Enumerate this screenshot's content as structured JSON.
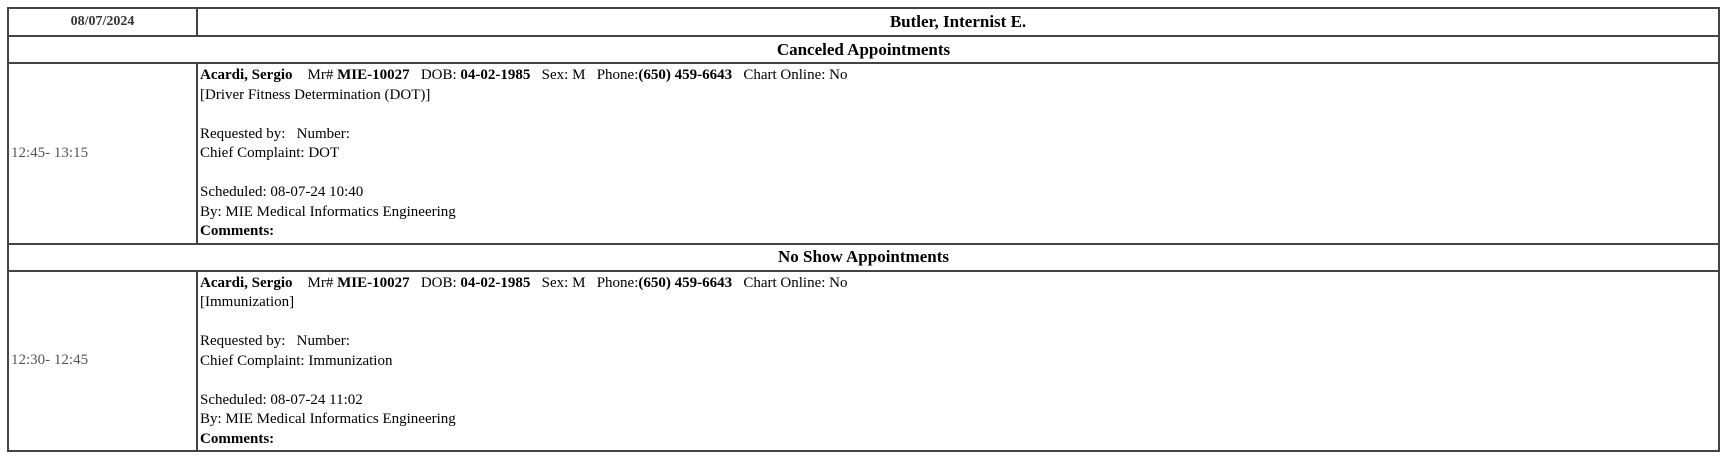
{
  "header": {
    "date": "08/07/2024",
    "provider": "Butler, Internist E."
  },
  "sections": [
    {
      "title": "Canceled Appointments",
      "appointment": {
        "time": "12:45- 13:15",
        "name": "Acardi, Sergio",
        "mr_label": "Mr#",
        "mr": "MIE-10027",
        "dob_label": "DOB:",
        "dob": "04-02-1985",
        "sex": "Sex: M",
        "phone_label": "Phone:",
        "phone": "(650) 459-6643",
        "chart_online": "Chart Online: No",
        "type": "[Driver Fitness Determination (DOT)]",
        "requested": "Requested by:   Number:",
        "complaint": "Chief Complaint: DOT",
        "scheduled": "Scheduled: 08-07-24 10:40",
        "by": "By: MIE Medical Informatics Engineering",
        "comments": "Comments:"
      }
    },
    {
      "title": "No Show Appointments",
      "appointment": {
        "time": "12:30- 12:45",
        "name": "Acardi, Sergio",
        "mr_label": "Mr#",
        "mr": "MIE-10027",
        "dob_label": "DOB:",
        "dob": "04-02-1985",
        "sex": "Sex: M",
        "phone_label": "Phone:",
        "phone": "(650) 459-6643",
        "chart_online": "Chart Online: No",
        "type": "[Immunization]",
        "requested": "Requested by:   Number:",
        "complaint": "Chief Complaint: Immunization",
        "scheduled": "Scheduled: 08-07-24 11:02",
        "by": "By: MIE Medical Informatics Engineering",
        "comments": "Comments:"
      }
    }
  ]
}
